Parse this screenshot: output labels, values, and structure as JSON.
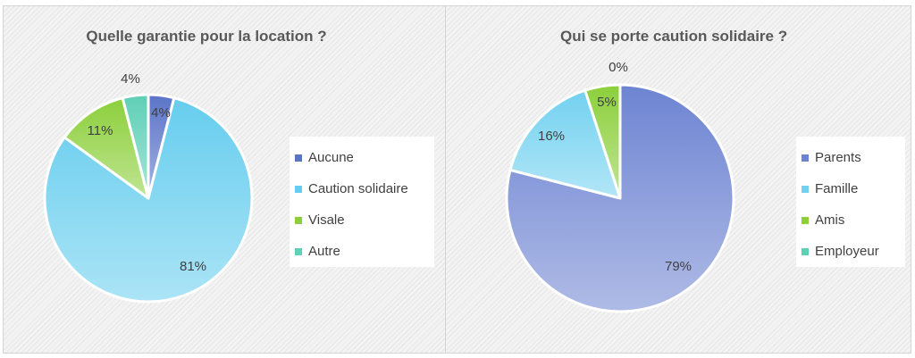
{
  "chart_data": [
    {
      "type": "pie",
      "title": "Quelle garantie pour la location ?",
      "categories": [
        "Aucune",
        "Caution solidaire",
        "Visale",
        "Autre"
      ],
      "values": [
        4,
        81,
        11,
        4
      ],
      "labels": [
        "4%",
        "81%",
        "11%",
        "4%"
      ],
      "colors": [
        "#5b74c8",
        "#66cdee",
        "#8ccf3b",
        "#5fcfb6"
      ],
      "legend_position": "right"
    },
    {
      "type": "pie",
      "title": "Qui se porte caution solidaire ?",
      "categories": [
        "Parents",
        "Famille",
        "Amis",
        "Employeur"
      ],
      "values": [
        79,
        16,
        5,
        0
      ],
      "labels": [
        "79%",
        "16%",
        "5%",
        "0%"
      ],
      "colors": [
        "#6d84d2",
        "#73d1f0",
        "#8ccf3b",
        "#5fcfb6"
      ],
      "legend_position": "right"
    }
  ]
}
